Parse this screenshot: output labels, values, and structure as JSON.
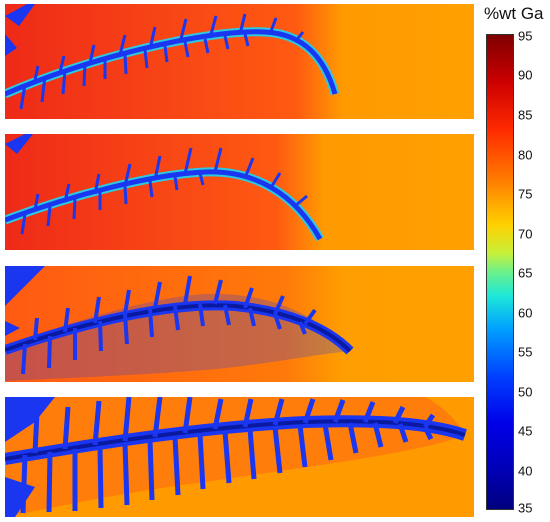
{
  "colorbar": {
    "title": "%wt Ga",
    "ticks": [
      "95",
      "90",
      "85",
      "80",
      "75",
      "70",
      "65",
      "60",
      "55",
      "50",
      "45",
      "40",
      "35"
    ]
  },
  "colors": {
    "liquid_high": "#ee2a18",
    "liquid_far": "#ffa000",
    "solid": "#1a36f0",
    "core": "#0a1aa0",
    "interface": "#2ec8e0"
  }
}
